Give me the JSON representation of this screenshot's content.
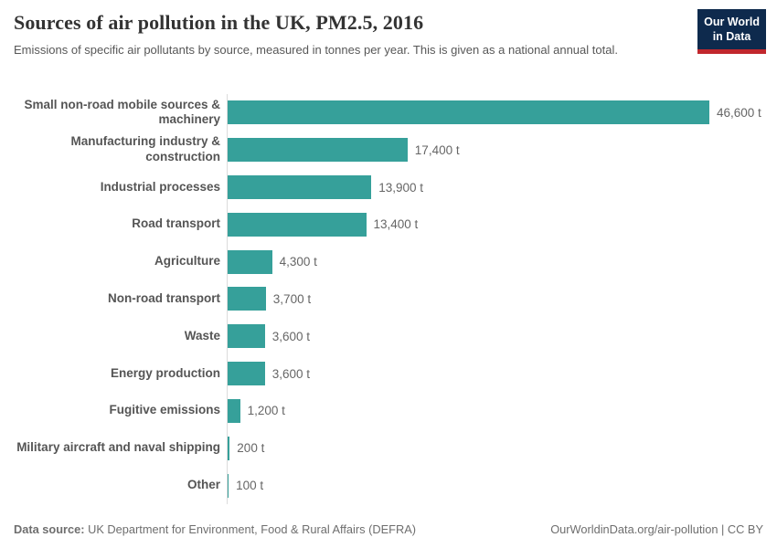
{
  "header": {
    "title": "Sources of air pollution in the UK, PM2.5, 2016",
    "subtitle": "Emissions of specific air pollutants by source, measured in tonnes per year. This is given as a national annual total.",
    "logo_line1": "Our World",
    "logo_line2": "in Data"
  },
  "chart_data": {
    "type": "bar",
    "orientation": "horizontal",
    "title": "Sources of air pollution in the UK, PM2.5, 2016",
    "unit": "tonnes per year",
    "xlim": [
      0,
      46600
    ],
    "grid": false,
    "legend": "none",
    "bar_color": "#36a09a",
    "axis_line_color": "#dcdcdc",
    "categories": [
      "Small non-road mobile sources & machinery",
      "Manufacturing industry & construction",
      "Industrial processes",
      "Road transport",
      "Agriculture",
      "Non-road transport",
      "Waste",
      "Energy production",
      "Fugitive emissions",
      "Military aircraft and naval shipping",
      "Other"
    ],
    "values": [
      46600,
      17400,
      13900,
      13400,
      4300,
      3700,
      3600,
      3600,
      1200,
      200,
      100
    ],
    "value_labels": [
      "46,600 t",
      "17,400 t",
      "13,900 t",
      "13,400 t",
      "4,300 t",
      "3,700 t",
      "3,600 t",
      "3,600 t",
      "1,200 t",
      "200 t",
      "100 t"
    ]
  },
  "footer": {
    "datasource_label": "Data source:",
    "datasource_text": "UK Department for Environment, Food & Rural Affairs (DEFRA)",
    "link_text": "OurWorldinData.org/air-pollution | CC BY"
  },
  "colors": {
    "bar": "#36a09a",
    "logo_navy": "#0e2a4d",
    "logo_red": "#c1272d",
    "title_text": "#333333",
    "subtitle_text": "#575757",
    "category_text": "#555555",
    "value_text": "#666666",
    "footer_text": "#6e6e6e"
  }
}
